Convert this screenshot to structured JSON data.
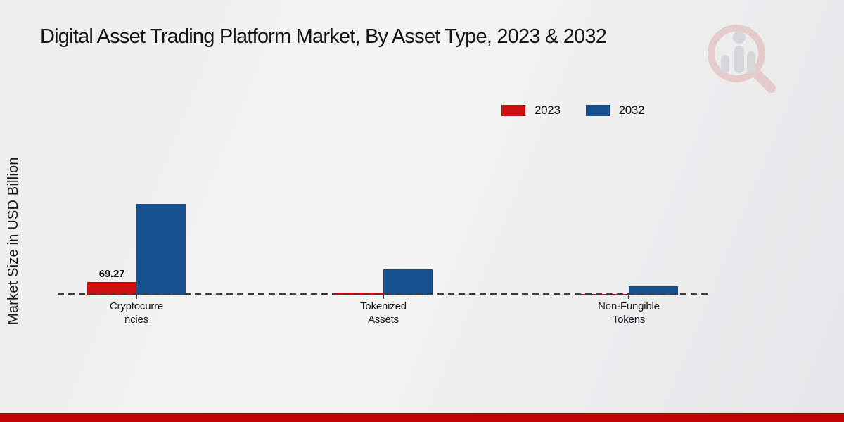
{
  "chart_data": {
    "type": "bar",
    "title": "Digital Asset Trading Platform Market, By Asset Type, 2023 & 2032",
    "xlabel": "",
    "ylabel": "Market Size in USD Billion",
    "categories": [
      "Cryptocurrencies",
      "Tokenized Assets",
      "Non-Fungible Tokens"
    ],
    "category_display": [
      "Cryptocurre\nncies",
      "Tokenized\nAssets",
      "Non-Fungible\nTokens"
    ],
    "series": [
      {
        "name": "2023",
        "color": "#cb0f0f",
        "values": [
          69.27,
          11.5,
          3.8
        ]
      },
      {
        "name": "2032",
        "color": "#16508e",
        "values": [
          496.4,
          138.5,
          46.2
        ]
      }
    ],
    "data_labels": [
      {
        "series": "2023",
        "category": "Cryptocurrencies",
        "text": "69.27"
      }
    ],
    "ylim": [
      0,
      520
    ],
    "grid": false,
    "legend_position": "top-right",
    "baseline_style": "dashed"
  },
  "branding": {
    "logo_icon": "magnifier-bar-chart-watermark",
    "accent_red": "#c20404"
  }
}
